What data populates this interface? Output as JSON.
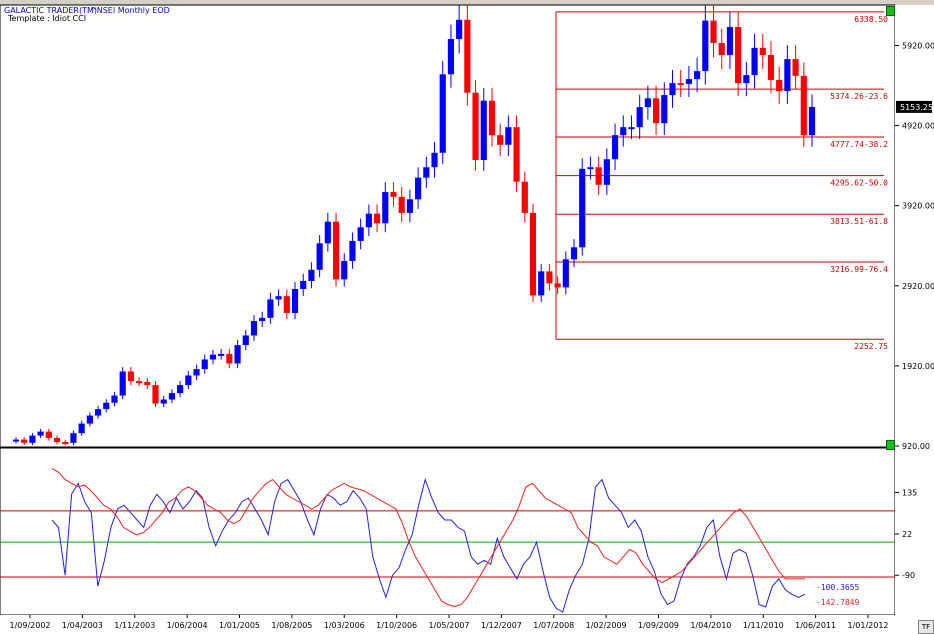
{
  "header": {
    "app_title": "GALACTIC TRADER(TM)",
    "symbol": "^NSEI Monthly  EOD",
    "template": "Template : Idiot CCI"
  },
  "colors": {
    "up_candle": "#0000ff",
    "down_candle": "#ff0000",
    "fib_line": "#cc0000",
    "cci_fast": "#2222dd",
    "cci_slow": "#ee2222",
    "zero_line": "#00aa00",
    "background": "#ffffff"
  },
  "tf_button": "TF",
  "chart_data": [
    {
      "type": "candlestick",
      "title": "",
      "ylim": [
        920,
        6400
      ],
      "y_ticks": [
        920,
        1920,
        2920,
        3920,
        4920,
        5920
      ],
      "y_tick_labels": [
        "920.00",
        "1920.00",
        "2920.00",
        "3920.00",
        "4920.00",
        "5920.00"
      ],
      "last_price_label": "5153.25",
      "close_approx": [
        1000,
        960,
        1050,
        1100,
        1020,
        970,
        960,
        1080,
        1200,
        1300,
        1380,
        1460,
        1550,
        1850,
        1730,
        1720,
        1680,
        1450,
        1500,
        1580,
        1680,
        1800,
        1880,
        2000,
        2060,
        2070,
        1950,
        2180,
        2300,
        2480,
        2520,
        2750,
        2790,
        2580,
        2880,
        2980,
        3120,
        3450,
        3720,
        3000,
        3230,
        3480,
        3650,
        3820,
        3700,
        4090,
        4030,
        3830,
        4000,
        4270,
        4400,
        4580,
        5560,
        6000,
        6240,
        5330,
        4490,
        5230,
        4800,
        4680,
        4900,
        4220,
        3830,
        2800,
        3100,
        2950,
        2900,
        3250,
        3400,
        4380,
        4400,
        4180,
        4500,
        4800,
        4900,
        4900,
        5150,
        5260,
        4950,
        5300,
        5450,
        5440,
        5500,
        5600,
        6230,
        5950,
        5800,
        6150,
        5450,
        5550,
        5890,
        5800,
        5490,
        5350,
        5750,
        5540,
        4800,
        5153
      ],
      "fib_levels": [
        {
          "label": "6338.50",
          "value": 6338.5
        },
        {
          "label": "5374.26-23.6",
          "value": 5374.26
        },
        {
          "label": "4777.74-38.2",
          "value": 4777.74
        },
        {
          "label": "4295.62-50.0",
          "value": 4295.62
        },
        {
          "label": "3813.51-61.8",
          "value": 3813.51
        },
        {
          "label": "3216.99-76.4",
          "value": 3216.99
        },
        {
          "label": "2252.75",
          "value": 2252.75
        }
      ]
    },
    {
      "type": "line",
      "title": "",
      "ylim": [
        -190,
        245
      ],
      "y_ticks": [
        135,
        22,
        -90
      ],
      "y_tick_labels": [
        "135",
        "22",
        "-90"
      ],
      "reference_lines": [
        {
          "value": 85,
          "color": "#cc0000"
        },
        {
          "value": 0,
          "color": "#00aa00"
        },
        {
          "value": -95,
          "color": "#cc0000"
        }
      ],
      "x_tick_labels": [
        "1/09/2002",
        "1/04/2003",
        "1/11/2003",
        "1/06/2004",
        "1/01/2005",
        "1/08/2005",
        "1/03/2006",
        "1/10/2006",
        "1/05/2007",
        "1/12/2007",
        "1/07/2008",
        "1/02/2009",
        "1/09/2009",
        "1/04/2010",
        "1/11/2010",
        "1/06/2011",
        "1/01/2012"
      ],
      "series": [
        {
          "name": "",
          "values": [
            60,
            40,
            -90,
            130,
            160,
            110,
            80,
            -120,
            -50,
            40,
            90,
            100,
            80,
            60,
            40,
            100,
            130,
            110,
            80,
            120,
            90,
            110,
            140,
            120,
            40,
            -10,
            30,
            60,
            80,
            110,
            120,
            90,
            60,
            20,
            110,
            160,
            170,
            140,
            110,
            60,
            20,
            90,
            130,
            120,
            100,
            110,
            140,
            120,
            90,
            -40,
            -100,
            -150,
            -90,
            -70,
            -20,
            20,
            100,
            170,
            120,
            80,
            60,
            60,
            40,
            30,
            -40,
            -60,
            -50,
            -60,
            10,
            -40,
            -70,
            -100,
            -60,
            -40,
            0,
            -80,
            -150,
            -180,
            -190,
            -130,
            -90,
            -60,
            10,
            150,
            170,
            120,
            100,
            80,
            40,
            60,
            30,
            -40,
            -80,
            -140,
            -170,
            -160,
            -100,
            -60,
            -40,
            -10,
            40,
            60,
            -40,
            -100,
            -30,
            -20,
            -30,
            -90,
            -170,
            -176,
            -120,
            -100,
            -130,
            -142,
            -150,
            -142
          ]
        },
        {
          "name": "",
          "values": [
            200,
            190,
            170,
            160,
            150,
            155,
            140,
            120,
            100,
            90,
            70,
            40,
            30,
            20,
            25,
            40,
            60,
            80,
            110,
            120,
            140,
            150,
            140,
            120,
            100,
            90,
            80,
            60,
            50,
            60,
            90,
            120,
            140,
            160,
            170,
            150,
            130,
            120,
            110,
            100,
            90,
            100,
            120,
            140,
            150,
            160,
            150,
            145,
            140,
            130,
            120,
            110,
            100,
            90,
            50,
            0,
            -40,
            -70,
            -100,
            -130,
            -160,
            -170,
            -175,
            -170,
            -150,
            -120,
            -90,
            -60,
            -30,
            0,
            30,
            60,
            100,
            150,
            160,
            140,
            120,
            110,
            100,
            90,
            80,
            40,
            20,
            0,
            -10,
            -40,
            -50,
            -60,
            -40,
            -20,
            -30,
            -60,
            -80,
            -100,
            -110,
            -100,
            -90,
            -80,
            -60,
            -40,
            -20,
            0,
            20,
            40,
            60,
            80,
            90,
            70,
            40,
            10,
            -20,
            -50,
            -80,
            -100,
            -100,
            -100,
            -100
          ]
        }
      ],
      "value_labels": [
        {
          "label": "-100.3655",
          "color": "#2222dd"
        },
        {
          "label": "-142.7849",
          "color": "#ee2222"
        }
      ]
    }
  ]
}
